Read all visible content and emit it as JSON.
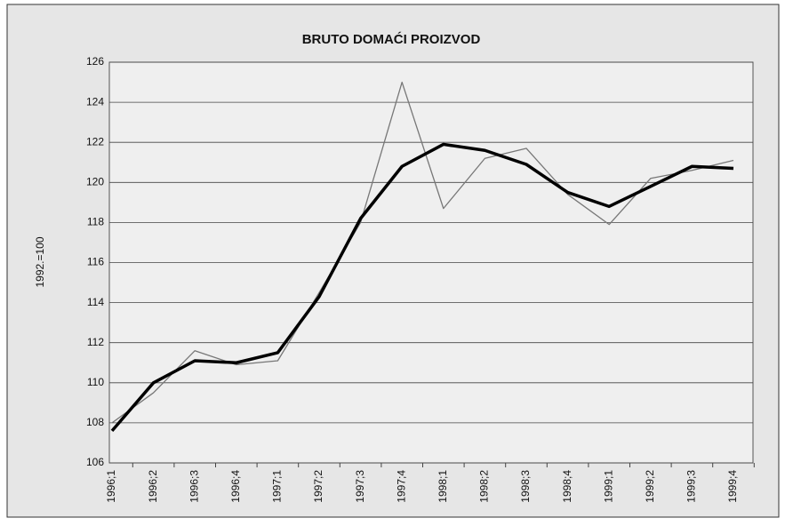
{
  "chart_data": {
    "type": "line",
    "title": "BRUTO DOMAĆI PROIZVOD",
    "ylabel": "1992.=100",
    "categories": [
      "1996;1",
      "1996;2",
      "1996;3",
      "1996;4",
      "1997;1",
      "1997;2",
      "1997;3",
      "1997;4",
      "1998;1",
      "1998;2",
      "1998;3",
      "1998;4",
      "1999;1",
      "1999;2",
      "1999;3",
      "1999;4"
    ],
    "series": [
      {
        "color": "#777777",
        "width": 1.3,
        "values": [
          108.0,
          109.5,
          111.6,
          110.9,
          111.1,
          114.5,
          118.0,
          125.0,
          118.7,
          121.2,
          121.7,
          119.4,
          117.9,
          120.2,
          120.6,
          121.1
        ]
      },
      {
        "color": "#000000",
        "width": 3.5,
        "values": [
          107.6,
          110.0,
          111.1,
          111.0,
          111.5,
          114.3,
          118.2,
          120.8,
          121.9,
          121.6,
          120.9,
          119.5,
          118.8,
          119.8,
          120.8,
          120.7
        ]
      }
    ],
    "ylim": [
      106,
      126
    ],
    "yticks": [
      106,
      108,
      110,
      112,
      114,
      116,
      118,
      120,
      122,
      124,
      126
    ],
    "grid": true
  }
}
